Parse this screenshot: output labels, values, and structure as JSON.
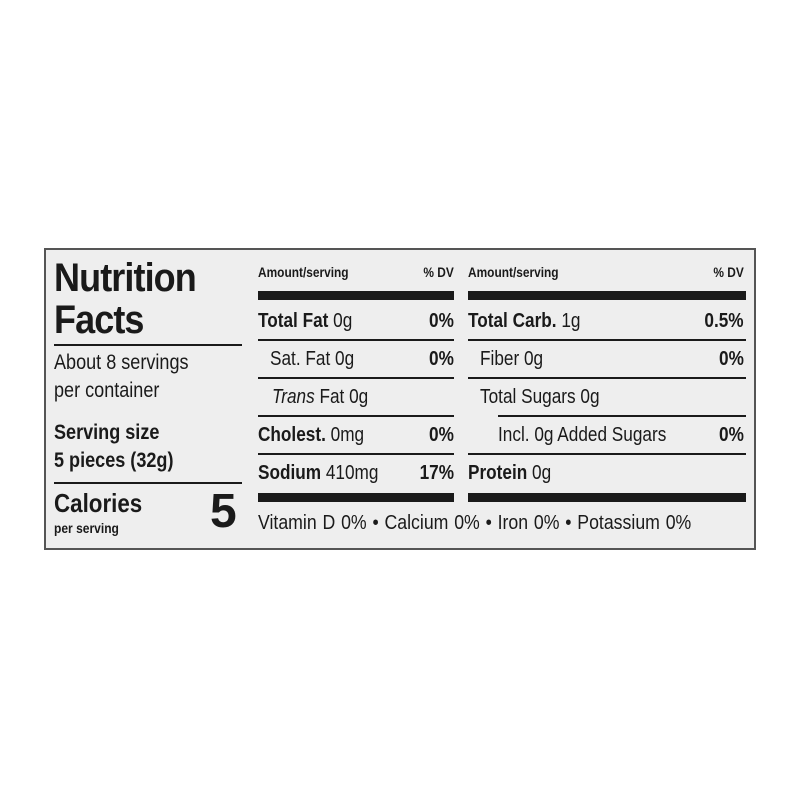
{
  "left": {
    "title_line1": "Nutrition",
    "title_line2": "Facts",
    "servings_line1": "About 8 servings",
    "servings_line2": "per container",
    "serving_size_label": "Serving size",
    "serving_size_value": "5 pieces (32g)",
    "calories_label": "Calories",
    "calories_sub": "per serving",
    "calories_value": "5"
  },
  "middle": {
    "header_amount": "Amount/serving",
    "header_dv": "% DV",
    "rows": [
      {
        "name": "Total Fat",
        "amount": "0g",
        "dv": "0%"
      },
      {
        "name": "Sat. Fat",
        "amount": "0g",
        "dv": "0%"
      },
      {
        "name": "Trans",
        "amount": "Fat 0g",
        "dv": ""
      },
      {
        "name": "Cholest.",
        "amount": "0mg",
        "dv": "0%"
      },
      {
        "name": "Sodium",
        "amount": "410mg",
        "dv": "17%"
      }
    ]
  },
  "right": {
    "header_amount": "Amount/serving",
    "header_dv": "% DV",
    "rows": [
      {
        "name": "Total Carb.",
        "amount": "1g",
        "dv": "0.5%"
      },
      {
        "name": "Fiber",
        "amount": "0g",
        "dv": "0%"
      },
      {
        "name": "Total Sugars",
        "amount": "0g",
        "dv": ""
      },
      {
        "name": "Incl. 0g Added Sugars",
        "amount": "",
        "dv": "0%"
      },
      {
        "name": "Protein",
        "amount": "0g",
        "dv": ""
      }
    ]
  },
  "footer": {
    "vitamins": "Vitamin D 0% • Calcium 0% • Iron 0% • Potassium 0%"
  }
}
